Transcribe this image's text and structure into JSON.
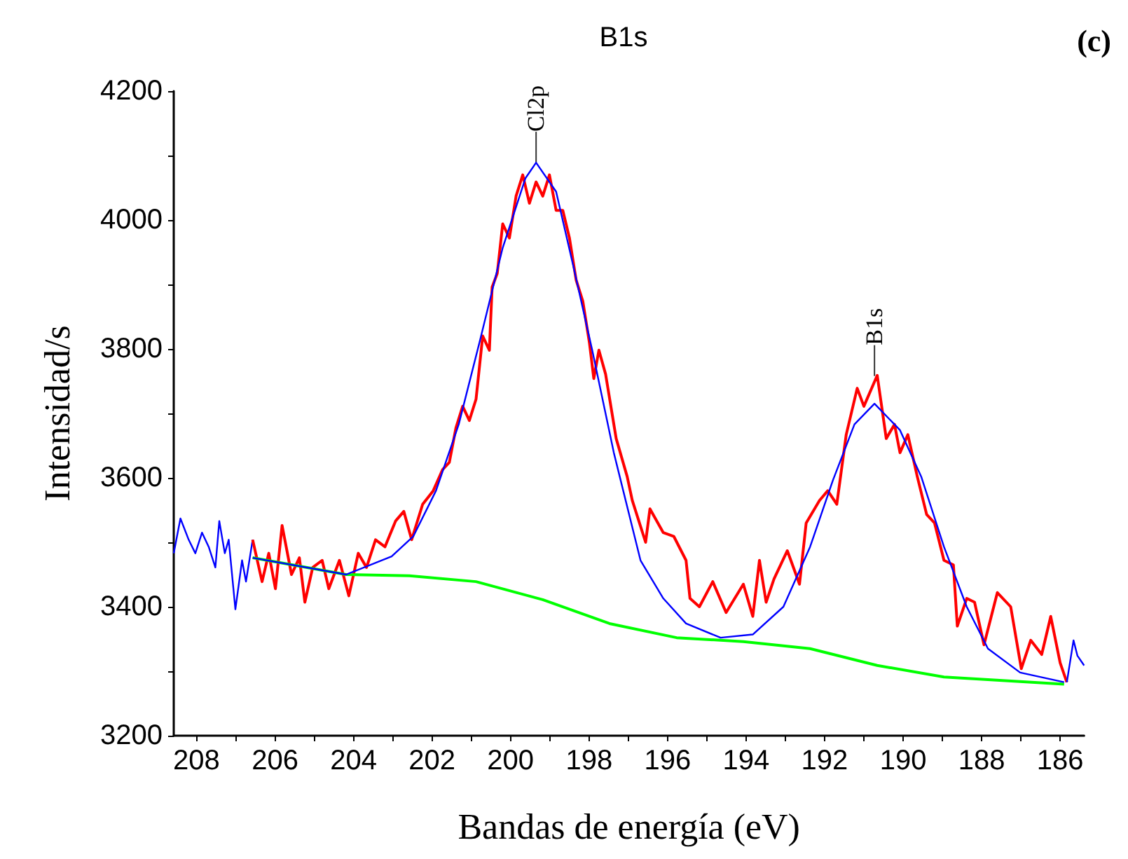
{
  "chart_data": {
    "type": "line",
    "title": "B1s",
    "xlabel": "Bandas de energía (eV)",
    "ylabel": "Intensidad/s",
    "xlim": [
      208.58,
      185.39
    ],
    "ylim": [
      3200,
      4200
    ],
    "xticks": [
      208,
      {
        "value": 207,
        "label": null
      },
      206,
      {
        "value": 205,
        "label": null
      },
      204,
      {
        "value": 203,
        "label": null
      },
      202,
      {
        "value": 201,
        "label": null
      },
      200,
      {
        "value": 199,
        "label": null
      },
      198,
      {
        "value": 197,
        "label": null
      },
      196,
      {
        "value": 195,
        "label": null
      },
      194,
      {
        "value": 193,
        "label": null
      },
      192,
      {
        "value": 191,
        "label": null
      },
      190,
      {
        "value": 189,
        "label": null
      },
      188,
      {
        "value": 187,
        "label": null
      },
      186
    ],
    "yticks": [
      3200,
      {
        "value": 3300,
        "label": null
      },
      3400,
      {
        "value": 3500,
        "label": null
      },
      3600,
      {
        "value": 3700,
        "label": null
      },
      3800,
      {
        "value": 3900,
        "label": null
      },
      4000,
      {
        "value": 4100,
        "label": null
      },
      4200
    ],
    "grid": false,
    "marker": "none",
    "line_style": "solid",
    "series": [
      {
        "color": "#0000ff",
        "x": [
          208.58,
          208.41,
          208.2,
          208.03,
          207.86,
          207.69,
          207.52,
          207.42,
          207.28,
          207.18,
          207.01,
          206.84,
          206.74,
          206.57
        ],
        "values": [
          3483,
          3537,
          3504,
          3483,
          3515,
          3493,
          3461,
          3533,
          3483,
          3504,
          3396,
          3472,
          3439,
          3504
        ]
      },
      {
        "color": "#ff0000",
        "x": [
          206.57,
          206.33,
          206.16,
          205.99,
          205.82,
          205.58,
          205.38,
          205.24,
          205.04,
          204.8,
          204.63,
          204.36,
          204.12,
          203.88,
          203.67,
          203.44,
          203.2,
          202.93,
          202.72,
          202.52,
          202.24,
          201.97,
          201.73,
          201.56,
          201.39,
          201.22,
          201.05,
          200.88,
          200.71,
          200.54,
          200.47,
          200.34,
          200.2,
          200.03,
          199.86,
          199.69,
          199.52,
          199.35,
          199.18,
          199.01,
          198.84,
          198.67,
          198.5,
          198.33,
          198.16,
          197.99,
          197.88,
          197.75,
          197.58,
          197.31,
          197.03,
          196.9,
          196.56,
          196.45,
          196.11,
          195.84,
          195.53,
          195.43,
          195.19,
          194.85,
          194.51,
          194.07,
          193.83,
          193.66,
          193.49,
          193.29,
          192.95,
          192.64,
          192.47,
          192.13,
          191.92,
          191.69,
          191.45,
          191.17,
          191.0,
          190.66,
          190.43,
          190.22,
          190.08,
          189.88,
          189.64,
          189.4,
          189.2,
          188.96,
          188.72,
          188.62,
          188.38,
          188.18,
          187.94,
          187.6,
          187.26,
          186.99,
          186.75,
          186.47,
          186.24,
          186.0,
          185.83
        ],
        "values": [
          3504,
          3439,
          3483,
          3428,
          3526,
          3450,
          3476,
          3407,
          3461,
          3472,
          3428,
          3472,
          3417,
          3483,
          3461,
          3504,
          3493,
          3533,
          3548,
          3504,
          3559,
          3580,
          3613,
          3624,
          3678,
          3711,
          3689,
          3722,
          3820,
          3798,
          3896,
          3917,
          3994,
          3972,
          4037,
          4070,
          4026,
          4059,
          4037,
          4070,
          4015,
          4015,
          3972,
          3907,
          3874,
          3809,
          3754,
          3798,
          3761,
          3661,
          3602,
          3565,
          3500,
          3552,
          3515,
          3509,
          3472,
          3413,
          3400,
          3439,
          3391,
          3435,
          3385,
          3472,
          3407,
          3443,
          3487,
          3435,
          3530,
          3565,
          3580,
          3559,
          3667,
          3739,
          3711,
          3759,
          3661,
          3683,
          3639,
          3667,
          3602,
          3543,
          3530,
          3472,
          3465,
          3370,
          3413,
          3407,
          3341,
          3422,
          3400,
          3304,
          3348,
          3326,
          3385,
          3313,
          3283
        ]
      },
      {
        "color": "#0000ff",
        "x": [
          185.83,
          185.66,
          185.56,
          185.39
        ],
        "values": [
          3283,
          3348,
          3324,
          3309
        ]
      },
      {
        "color": "#00ff00",
        "x": [
          206.57,
          204.19,
          202.58,
          200.88,
          199.18,
          197.48,
          195.77,
          194.07,
          192.37,
          190.66,
          188.96,
          185.9
        ],
        "values": [
          3476,
          3450,
          3448,
          3439,
          3411,
          3374,
          3352,
          3346,
          3335,
          3309,
          3291,
          3280
        ]
      },
      {
        "color": "#0000ff",
        "x": [
          206.57,
          204.19,
          203.03,
          202.48,
          201.9,
          201.32,
          200.78,
          200.2,
          199.62,
          199.35,
          198.84,
          198.4,
          197.92,
          197.37,
          197.13,
          196.69,
          196.11,
          195.53,
          194.65,
          193.83,
          193.05,
          192.37,
          191.79,
          191.24,
          190.73,
          190.08,
          189.54,
          188.96,
          188.38,
          187.84,
          187.02,
          185.9
        ],
        "values": [
          3476,
          3450,
          3478,
          3509,
          3580,
          3683,
          3813,
          3957,
          4065,
          4089,
          4044,
          3928,
          3798,
          3639,
          3580,
          3472,
          3413,
          3374,
          3352,
          3357,
          3400,
          3493,
          3596,
          3683,
          3715,
          3674,
          3602,
          3493,
          3400,
          3335,
          3298,
          3283
        ]
      }
    ],
    "annotations": [
      {
        "text": "Cl2p",
        "x": 199.35,
        "y": 4089
      },
      {
        "text": "B1s",
        "x": 190.73,
        "y": 3758
      },
      "(c)"
    ]
  }
}
